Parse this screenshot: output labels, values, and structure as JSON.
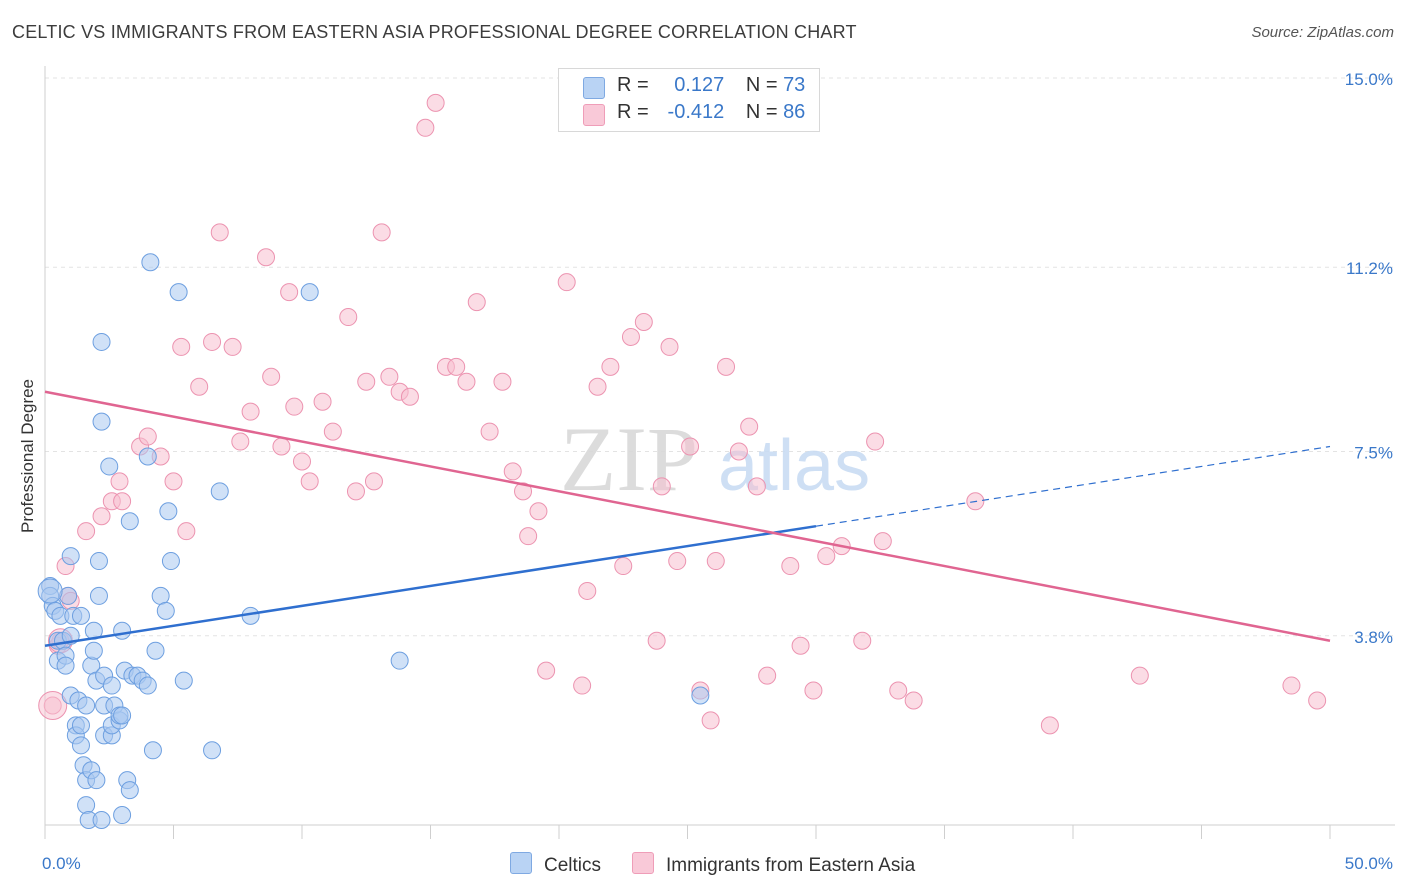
{
  "title": "CELTIC VS IMMIGRANTS FROM EASTERN ASIA PROFESSIONAL DEGREE CORRELATION CHART",
  "source": "Source: ZipAtlas.com",
  "watermark": {
    "zip": "ZIP",
    "atlas": "atlas"
  },
  "legend": {
    "celtic": {
      "r_label": "R =",
      "r_value": "0.127",
      "n_label": "N =",
      "n_value": "73"
    },
    "asia": {
      "r_label": "R =",
      "r_value": "-0.412",
      "n_label": "N =",
      "n_value": "86"
    }
  },
  "bottom_legend": {
    "celtic": "Celtics",
    "asia": "Immigrants from Eastern Asia"
  },
  "colors": {
    "celtic_fill": "#a9c8f0",
    "celtic_stroke": "#6d9fe0",
    "celtic_line": "#2f6fcf",
    "asia_fill": "#f7bfd0",
    "asia_stroke": "#ec93b0",
    "asia_line": "#e06591",
    "tick_label": "#3a78c9",
    "grid": "#e3e3e3"
  },
  "chart_data": {
    "type": "scatter",
    "ylabel": "Professional Degree",
    "xlim": [
      0,
      50
    ],
    "ylim": [
      0,
      15
    ],
    "x_tick_labels": [
      {
        "value": 0,
        "label": "0.0%"
      },
      {
        "value": 50,
        "label": "50.0%"
      }
    ],
    "y_tick_labels": [
      {
        "value": 3.8,
        "label": "3.8%"
      },
      {
        "value": 7.5,
        "label": "7.5%"
      },
      {
        "value": 11.2,
        "label": "11.2%"
      },
      {
        "value": 15.0,
        "label": "15.0%"
      }
    ],
    "grid": true,
    "series": [
      {
        "name": "Celtics",
        "trend": {
          "x0": 0,
          "y0": 3.6,
          "x1": 30,
          "y1": 6.0,
          "dash_to_x": 50,
          "dash_to_y": 7.6
        },
        "points": [
          [
            0.2,
            4.8
          ],
          [
            0.2,
            4.6
          ],
          [
            0.3,
            4.4
          ],
          [
            0.4,
            4.3
          ],
          [
            0.5,
            3.7
          ],
          [
            0.5,
            3.3
          ],
          [
            0.6,
            4.2
          ],
          [
            0.7,
            3.7
          ],
          [
            0.8,
            3.4
          ],
          [
            0.8,
            3.2
          ],
          [
            0.9,
            4.6
          ],
          [
            1.0,
            5.4
          ],
          [
            1.0,
            2.6
          ],
          [
            1.0,
            3.8
          ],
          [
            1.1,
            4.2
          ],
          [
            1.2,
            2.0
          ],
          [
            1.2,
            1.8
          ],
          [
            1.3,
            2.5
          ],
          [
            1.4,
            4.2
          ],
          [
            1.4,
            2.0
          ],
          [
            1.4,
            1.6
          ],
          [
            1.5,
            1.2
          ],
          [
            1.6,
            2.4
          ],
          [
            1.6,
            0.4
          ],
          [
            1.6,
            0.9
          ],
          [
            1.7,
            0.1
          ],
          [
            1.8,
            1.1
          ],
          [
            1.8,
            3.2
          ],
          [
            1.9,
            3.5
          ],
          [
            1.9,
            3.9
          ],
          [
            2.0,
            2.9
          ],
          [
            2.0,
            0.9
          ],
          [
            2.1,
            4.6
          ],
          [
            2.1,
            5.3
          ],
          [
            2.2,
            9.7
          ],
          [
            2.2,
            8.1
          ],
          [
            2.2,
            0.1
          ],
          [
            2.3,
            3.0
          ],
          [
            2.3,
            2.4
          ],
          [
            2.3,
            1.8
          ],
          [
            2.5,
            7.2
          ],
          [
            2.6,
            2.8
          ],
          [
            2.6,
            1.8
          ],
          [
            2.6,
            2.0
          ],
          [
            2.7,
            2.4
          ],
          [
            2.9,
            2.1
          ],
          [
            2.9,
            2.2
          ],
          [
            3.0,
            2.2
          ],
          [
            3.0,
            3.9
          ],
          [
            3.0,
            0.2
          ],
          [
            3.1,
            3.1
          ],
          [
            3.2,
            0.9
          ],
          [
            3.3,
            6.1
          ],
          [
            3.3,
            0.7
          ],
          [
            3.4,
            3.0
          ],
          [
            3.6,
            3.0
          ],
          [
            3.8,
            2.9
          ],
          [
            4.0,
            7.4
          ],
          [
            4.0,
            2.8
          ],
          [
            4.1,
            11.3
          ],
          [
            4.2,
            1.5
          ],
          [
            4.3,
            3.5
          ],
          [
            4.5,
            4.6
          ],
          [
            4.7,
            4.3
          ],
          [
            4.8,
            6.3
          ],
          [
            4.9,
            5.3
          ],
          [
            5.2,
            10.7
          ],
          [
            5.4,
            2.9
          ],
          [
            6.5,
            1.5
          ],
          [
            6.8,
            6.7
          ],
          [
            8.0,
            4.2
          ],
          [
            10.3,
            10.7
          ],
          [
            13.8,
            3.3
          ],
          [
            25.5,
            2.6
          ]
        ]
      },
      {
        "name": "Immigrants from Eastern Asia",
        "trend": {
          "x0": 0,
          "y0": 8.7,
          "x1": 50,
          "y1": 3.7
        },
        "points": [
          [
            0.3,
            2.4
          ],
          [
            0.5,
            3.6
          ],
          [
            0.6,
            3.7
          ],
          [
            0.8,
            5.2
          ],
          [
            0.9,
            4.6
          ],
          [
            1.0,
            4.5
          ],
          [
            1.6,
            5.9
          ],
          [
            2.2,
            6.2
          ],
          [
            2.6,
            6.5
          ],
          [
            2.9,
            6.9
          ],
          [
            3.0,
            6.5
          ],
          [
            3.7,
            7.6
          ],
          [
            4.0,
            7.8
          ],
          [
            4.5,
            7.4
          ],
          [
            5.0,
            6.9
          ],
          [
            5.3,
            9.6
          ],
          [
            5.5,
            5.9
          ],
          [
            6.0,
            8.8
          ],
          [
            6.5,
            9.7
          ],
          [
            6.8,
            11.9
          ],
          [
            7.3,
            9.6
          ],
          [
            7.6,
            7.7
          ],
          [
            8.0,
            8.3
          ],
          [
            8.6,
            11.4
          ],
          [
            8.8,
            9.0
          ],
          [
            9.2,
            7.6
          ],
          [
            9.5,
            10.7
          ],
          [
            9.7,
            8.4
          ],
          [
            10.0,
            7.3
          ],
          [
            10.3,
            6.9
          ],
          [
            10.8,
            8.5
          ],
          [
            11.2,
            7.9
          ],
          [
            11.8,
            10.2
          ],
          [
            12.1,
            6.7
          ],
          [
            12.5,
            8.9
          ],
          [
            12.8,
            6.9
          ],
          [
            13.1,
            11.9
          ],
          [
            13.4,
            9.0
          ],
          [
            13.8,
            8.7
          ],
          [
            14.2,
            8.6
          ],
          [
            14.8,
            14.0
          ],
          [
            15.2,
            14.5
          ],
          [
            15.6,
            9.2
          ],
          [
            16.0,
            9.2
          ],
          [
            16.4,
            8.9
          ],
          [
            16.8,
            10.5
          ],
          [
            17.3,
            7.9
          ],
          [
            17.8,
            8.9
          ],
          [
            18.2,
            7.1
          ],
          [
            18.6,
            6.7
          ],
          [
            18.8,
            5.8
          ],
          [
            19.2,
            6.3
          ],
          [
            19.5,
            3.1
          ],
          [
            20.3,
            10.9
          ],
          [
            20.9,
            2.8
          ],
          [
            21.1,
            4.7
          ],
          [
            21.5,
            8.8
          ],
          [
            22.0,
            9.2
          ],
          [
            22.5,
            5.2
          ],
          [
            22.8,
            9.8
          ],
          [
            23.3,
            10.1
          ],
          [
            23.8,
            3.7
          ],
          [
            24.0,
            6.8
          ],
          [
            24.3,
            9.6
          ],
          [
            24.6,
            5.3
          ],
          [
            25.1,
            7.6
          ],
          [
            25.5,
            2.7
          ],
          [
            25.9,
            2.1
          ],
          [
            26.1,
            5.3
          ],
          [
            26.5,
            9.2
          ],
          [
            27.0,
            7.5
          ],
          [
            27.4,
            8.0
          ],
          [
            27.7,
            6.8
          ],
          [
            28.1,
            3.0
          ],
          [
            29.0,
            5.2
          ],
          [
            29.4,
            3.6
          ],
          [
            29.9,
            2.7
          ],
          [
            30.4,
            5.4
          ],
          [
            31.0,
            5.6
          ],
          [
            31.8,
            3.7
          ],
          [
            32.3,
            7.7
          ],
          [
            32.6,
            5.7
          ],
          [
            33.2,
            2.7
          ],
          [
            33.8,
            2.5
          ],
          [
            36.2,
            6.5
          ],
          [
            39.1,
            2.0
          ],
          [
            42.6,
            3.0
          ],
          [
            48.5,
            2.8
          ],
          [
            49.5,
            2.5
          ]
        ]
      }
    ]
  }
}
